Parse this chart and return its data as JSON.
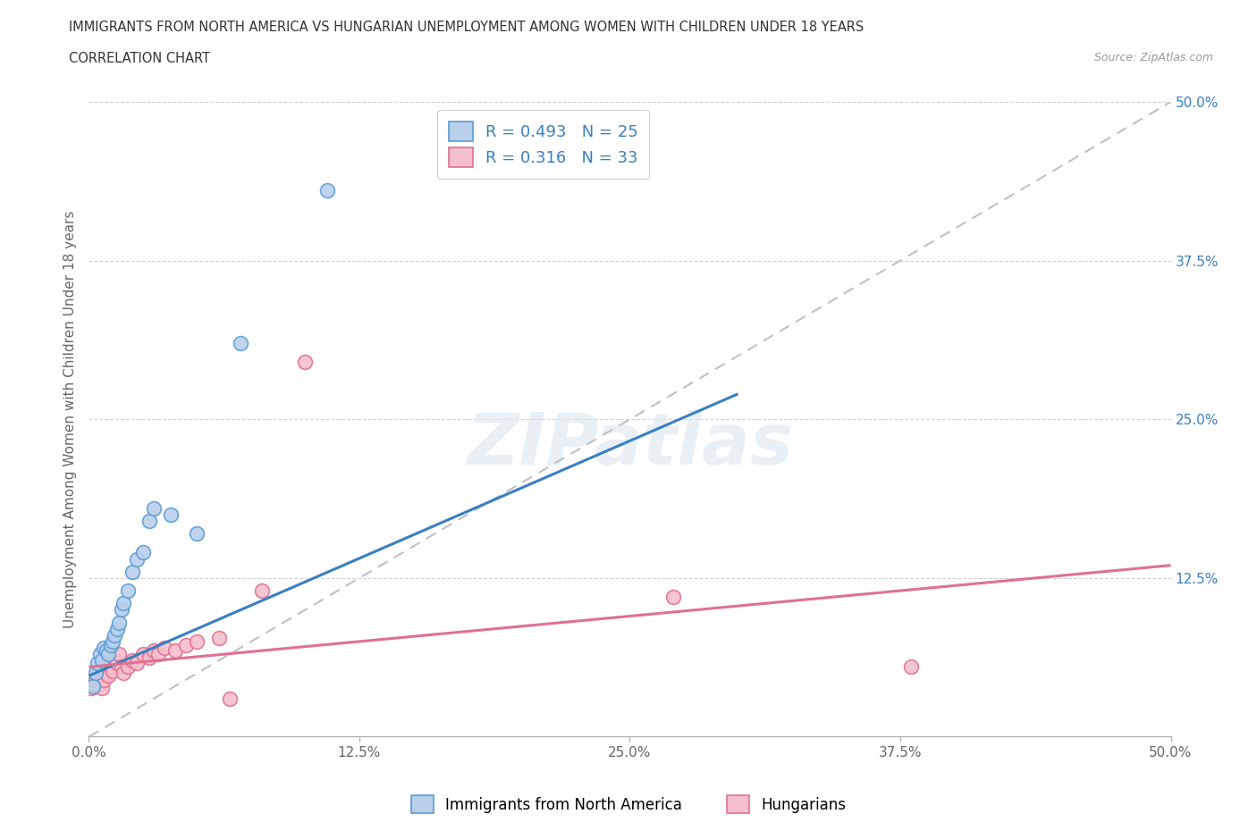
{
  "title": "IMMIGRANTS FROM NORTH AMERICA VS HUNGARIAN UNEMPLOYMENT AMONG WOMEN WITH CHILDREN UNDER 18 YEARS",
  "subtitle": "CORRELATION CHART",
  "source": "Source: ZipAtlas.com",
  "ylabel": "Unemployment Among Women with Children Under 18 years",
  "xlim": [
    0.0,
    0.5
  ],
  "ylim": [
    0.0,
    0.5
  ],
  "xtick_labels": [
    "0.0%",
    "12.5%",
    "25.0%",
    "37.5%",
    "50.0%"
  ],
  "xtick_vals": [
    0.0,
    0.125,
    0.25,
    0.375,
    0.5
  ],
  "ytick_right_labels": [
    "50.0%",
    "37.5%",
    "25.0%",
    "12.5%"
  ],
  "ytick_right_vals": [
    0.5,
    0.375,
    0.25,
    0.125
  ],
  "r_blue": 0.493,
  "n_blue": 25,
  "r_pink": 0.316,
  "n_pink": 33,
  "blue_scatter_color": "#b8d0ea",
  "blue_edge_color": "#5b9bd5",
  "pink_scatter_color": "#f4bfcc",
  "pink_edge_color": "#e07090",
  "blue_line_color": "#3a7fc1",
  "pink_line_color": "#e07090",
  "diagonal_color": "#c0c0c0",
  "watermark": "ZIPatlas",
  "blue_scatter_x": [
    0.002,
    0.003,
    0.004,
    0.005,
    0.006,
    0.007,
    0.008,
    0.009,
    0.01,
    0.011,
    0.012,
    0.013,
    0.014,
    0.015,
    0.016,
    0.018,
    0.02,
    0.022,
    0.025,
    0.028,
    0.03,
    0.038,
    0.05,
    0.07,
    0.11
  ],
  "blue_scatter_y": [
    0.04,
    0.05,
    0.058,
    0.065,
    0.06,
    0.07,
    0.068,
    0.065,
    0.072,
    0.075,
    0.08,
    0.085,
    0.09,
    0.1,
    0.105,
    0.115,
    0.13,
    0.14,
    0.145,
    0.17,
    0.18,
    0.175,
    0.16,
    0.31,
    0.43
  ],
  "pink_scatter_x": [
    0.001,
    0.002,
    0.003,
    0.004,
    0.005,
    0.006,
    0.007,
    0.008,
    0.009,
    0.01,
    0.011,
    0.012,
    0.013,
    0.014,
    0.015,
    0.016,
    0.018,
    0.02,
    0.022,
    0.025,
    0.028,
    0.03,
    0.032,
    0.035,
    0.04,
    0.045,
    0.05,
    0.06,
    0.065,
    0.08,
    0.1,
    0.27,
    0.38
  ],
  "pink_scatter_y": [
    0.038,
    0.042,
    0.045,
    0.048,
    0.042,
    0.038,
    0.045,
    0.05,
    0.048,
    0.055,
    0.052,
    0.06,
    0.058,
    0.065,
    0.055,
    0.05,
    0.055,
    0.06,
    0.058,
    0.065,
    0.062,
    0.068,
    0.065,
    0.07,
    0.068,
    0.072,
    0.075,
    0.078,
    0.03,
    0.115,
    0.295,
    0.11,
    0.055
  ],
  "legend_label_blue": "Immigrants from North America",
  "legend_label_pink": "Hungarians",
  "blue_trend_x0": 0.0,
  "blue_trend_y0": 0.048,
  "blue_trend_x1": 0.3,
  "blue_trend_y1": 0.27,
  "pink_trend_x0": 0.0,
  "pink_trend_y0": 0.055,
  "pink_trend_x1": 0.5,
  "pink_trend_y1": 0.135
}
